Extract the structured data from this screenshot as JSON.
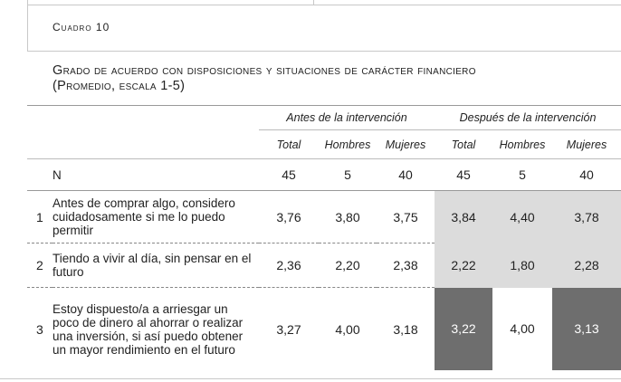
{
  "cuadro": "Cuadro 10",
  "title_line1": "Grado de acuerdo con disposiciones y situaciones de carácter financiero",
  "title_line2": "(Promedio, escala 1-5)",
  "groups": {
    "before": "Antes de la intervención",
    "after": "Después de la intervención"
  },
  "subheaders": [
    "Total",
    "Hombres",
    "Mujeres",
    "Total",
    "Hombres",
    "Mujeres"
  ],
  "n_row": {
    "label": "N",
    "values": [
      "45",
      "5",
      "40",
      "45",
      "5",
      "40"
    ]
  },
  "rows": [
    {
      "index": "1",
      "label": "Antes de comprar algo, considero cuidadosamente si me lo puedo permitir",
      "values": [
        "3,76",
        "3,80",
        "3,75",
        "3,84",
        "4,40",
        "3,78"
      ]
    },
    {
      "index": "2",
      "label": "Tiendo a vivir al día, sin pensar en el futuro",
      "values": [
        "2,36",
        "2,20",
        "2,38",
        "2,22",
        "1,80",
        "2,28"
      ]
    },
    {
      "index": "3",
      "label": "Estoy dispuesto/a a arriesgar un poco de dinero al ahorrar o realizar una inversión, si así puedo obtener un mayor rendimiento en el futuro",
      "values": [
        "3,27",
        "4,00",
        "3,18",
        "3,22",
        "4,00",
        "3,13"
      ]
    }
  ],
  "colors": {
    "light_highlight": "#dcdcdc",
    "dark_highlight": "#6e6e6e",
    "rule": "#999999"
  }
}
